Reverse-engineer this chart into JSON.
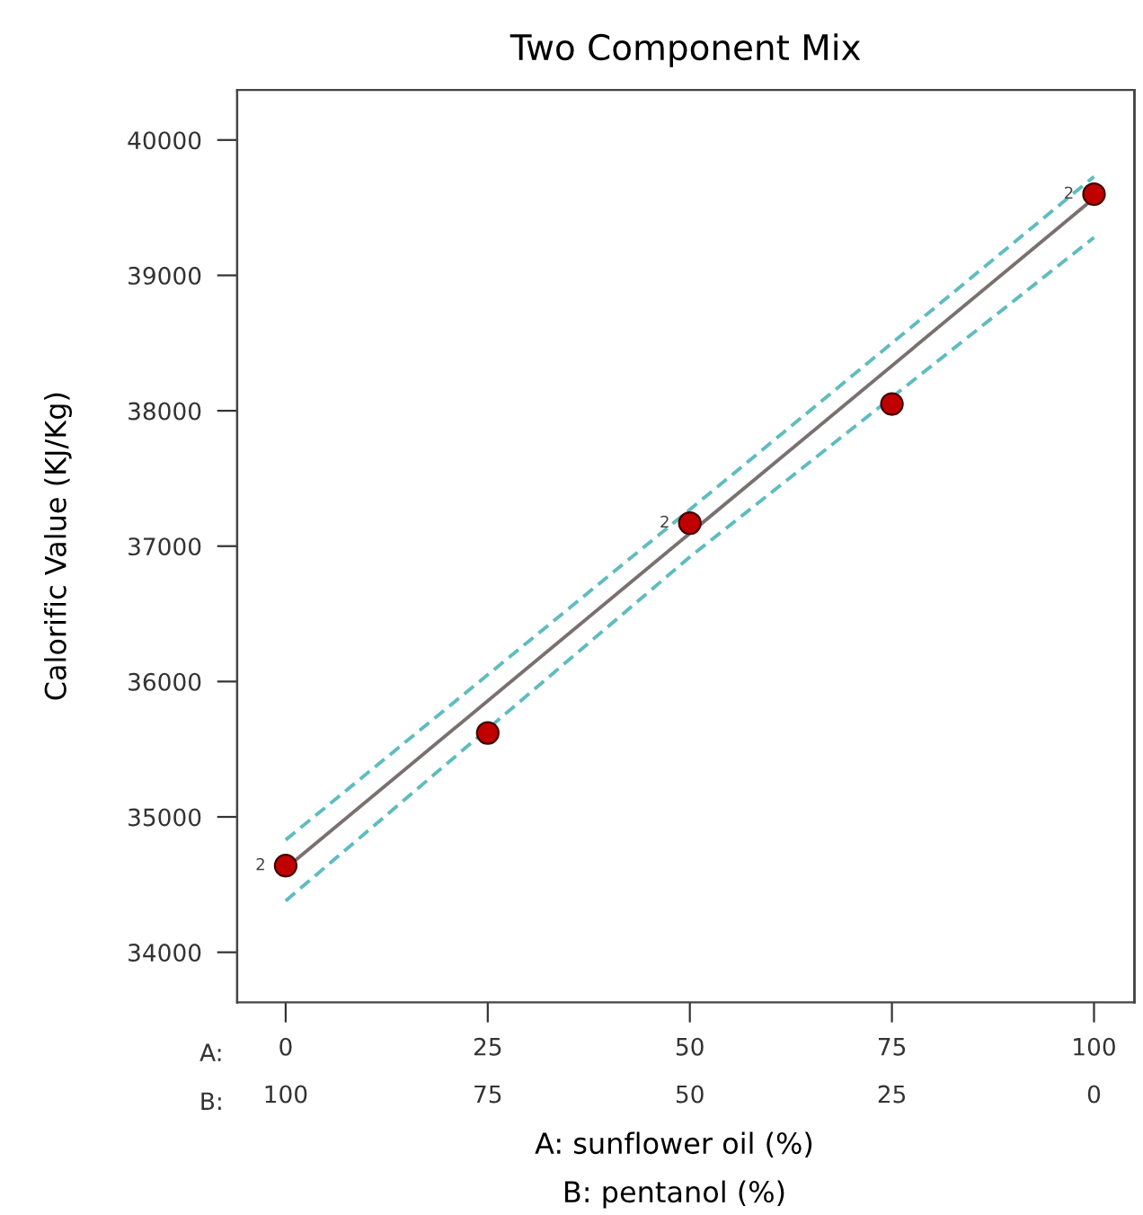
{
  "chart_data": {
    "type": "scatter",
    "title": "Two Component Mix",
    "ylabel": "Calorific Value (KJ/Kg)",
    "xlabel": "A: sunflower oil (%)",
    "x2label": "B: pentanol (%)",
    "xlim": [
      -6,
      105
    ],
    "xticks": [
      0,
      25,
      50,
      75,
      100
    ],
    "x2lim": [
      106,
      -5
    ],
    "x2ticks": [
      100,
      75,
      50,
      25,
      0
    ],
    "ylim": [
      33630,
      40370
    ],
    "yticks": [
      34000,
      35000,
      36000,
      37000,
      38000,
      39000,
      40000
    ],
    "grid": false,
    "annotations": [
      "A:",
      "B:",
      {
        "text": "2",
        "x": 0,
        "y": 34640
      },
      {
        "text": "2",
        "x": 50,
        "y": 37170
      },
      {
        "text": "2",
        "x": 100,
        "y": 39600
      }
    ],
    "series": [
      {
        "type": "line",
        "color": "#7a7070",
        "line_style": "solid",
        "marker": "none",
        "x": [
          0,
          100
        ],
        "values": [
          34620,
          39570
        ]
      },
      {
        "type": "line",
        "color": "#5fbcbf",
        "line_style": "dashed",
        "marker": "none",
        "x": [
          0,
          50,
          100
        ],
        "values": [
          34830,
          37270,
          39730
        ]
      },
      {
        "type": "line",
        "color": "#5fbcbf",
        "line_style": "dashed",
        "marker": "none",
        "x": [
          0,
          50,
          100
        ],
        "values": [
          34380,
          36920,
          39280
        ]
      },
      {
        "color": "#c00000",
        "marker": "circle",
        "x": [
          0,
          25,
          50,
          75,
          100
        ],
        "values": [
          34640,
          35620,
          37170,
          38050,
          39600
        ]
      }
    ]
  }
}
